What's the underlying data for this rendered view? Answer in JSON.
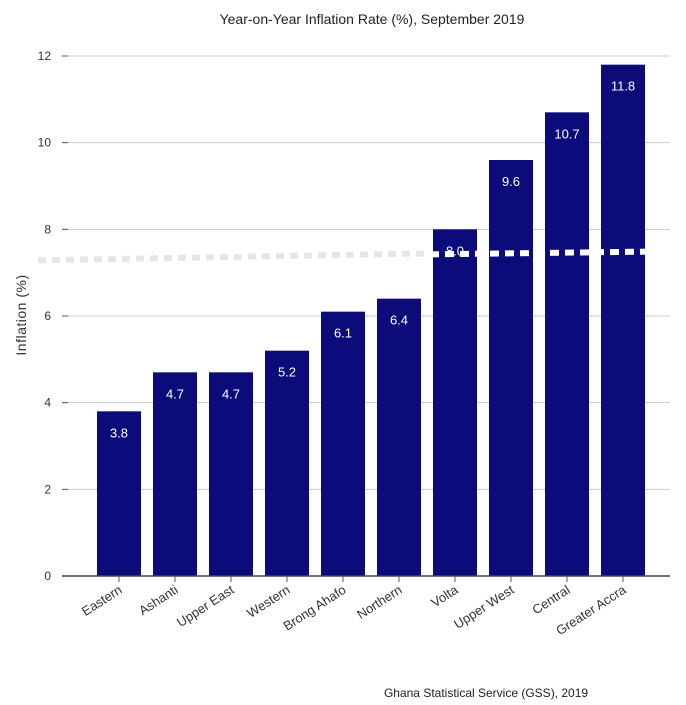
{
  "chart_data": {
    "type": "bar",
    "title": "Year-on-Year Inflation Rate (%), September 2019",
    "ylabel": "Inflation (%)",
    "xlabel": "",
    "categories": [
      "Eastern",
      "Ashanti",
      "Upper East",
      "Western",
      "Brong Ahafo",
      "Northern",
      "Volta",
      "Upper West",
      "Central",
      "Greater Accra"
    ],
    "values": [
      3.8,
      4.7,
      4.7,
      5.2,
      6.1,
      6.4,
      8.0,
      9.6,
      10.7,
      11.8
    ],
    "data_labels": [
      "3.8",
      "4.7",
      "4.7",
      "5.2",
      "6.1",
      "6.4",
      "8.0",
      "9.6",
      "10.7",
      "11.8"
    ],
    "ylim": [
      0,
      12
    ],
    "yticks": [
      0,
      2,
      4,
      6,
      8,
      10,
      12
    ],
    "reference_line": {
      "value": 7.4,
      "style": "dotted"
    },
    "grid": "horizontal",
    "bar_color": "#0b0b7a",
    "source": "Ghana Statistical Service (GSS), 2019"
  }
}
